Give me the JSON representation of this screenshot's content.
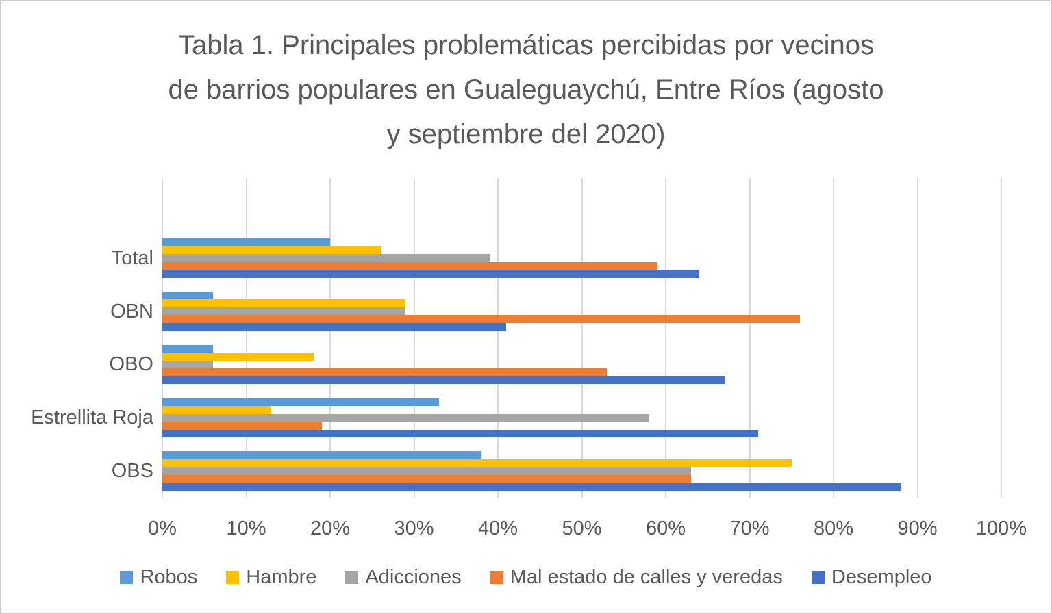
{
  "chart_data": {
    "type": "bar",
    "orientation": "horizontal",
    "title": "Tabla 1. Principales problemáticas percibidas por vecinos de barrios populares en Gualeguaychú, Entre Ríos (agosto y septiembre del 2020)",
    "title_lines": [
      "Tabla 1. Principales problemáticas percibidas por vecinos",
      "de barrios populares en Gualeguaychú, Entre Ríos (agosto",
      "y septiembre del 2020)"
    ],
    "categories": [
      "Total",
      "OBN",
      "OBO",
      "Estrellita Roja",
      "OBS"
    ],
    "series": [
      {
        "name": "Robos",
        "color": "#5B9BD5",
        "values": [
          20,
          6,
          6,
          33,
          38
        ]
      },
      {
        "name": "Hambre",
        "color": "#FFC000",
        "values": [
          26,
          29,
          18,
          13,
          75
        ]
      },
      {
        "name": "Adicciones",
        "color": "#A5A5A5",
        "values": [
          39,
          29,
          6,
          58,
          63
        ]
      },
      {
        "name": "Mal estado de calles y veredas",
        "color": "#ED7D31",
        "values": [
          59,
          76,
          53,
          19,
          63
        ]
      },
      {
        "name": "Desempleo",
        "color": "#4472C4",
        "values": [
          64,
          41,
          67,
          71,
          88
        ]
      }
    ],
    "x_axis": {
      "min": 0,
      "max": 100,
      "tick_step": 10,
      "unit": "%",
      "tick_labels": [
        "0%",
        "10%",
        "20%",
        "30%",
        "40%",
        "50%",
        "60%",
        "70%",
        "80%",
        "90%",
        "100%"
      ]
    },
    "grid": true,
    "legend_position": "bottom",
    "colors": {
      "text": "#595959",
      "gridline": "#D9D9D9",
      "page_border": "#C9C9C9",
      "background": "#FFFFFF"
    }
  }
}
